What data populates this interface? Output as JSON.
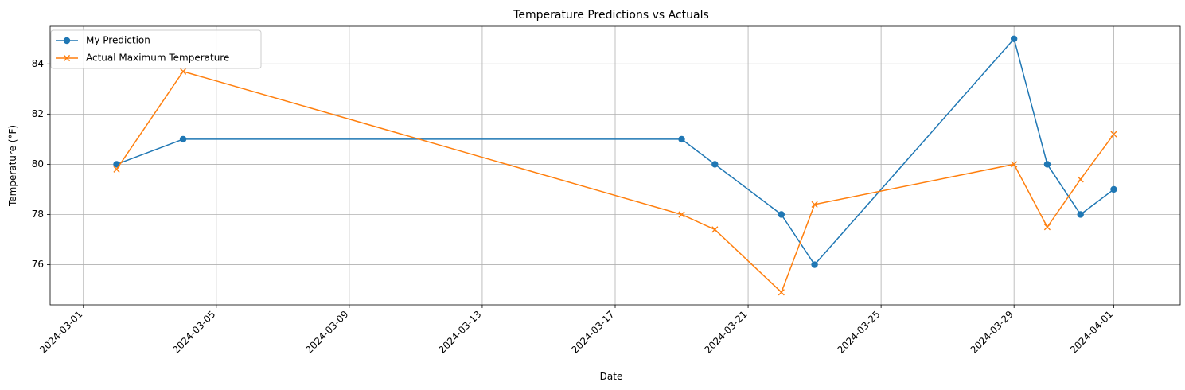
{
  "chart_data": {
    "type": "line",
    "title": "Temperature Predictions vs Actuals",
    "xlabel": "Date",
    "ylabel": "Temperature (°F)",
    "xlim": [
      "2024-02-29",
      "2024-04-03"
    ],
    "ylim": [
      74.4,
      85.5
    ],
    "x_ticks": [
      "2024-03-01",
      "2024-03-05",
      "2024-03-09",
      "2024-03-13",
      "2024-03-17",
      "2024-03-21",
      "2024-03-25",
      "2024-03-29",
      "2024-04-01"
    ],
    "y_ticks": [
      76,
      78,
      80,
      82,
      84
    ],
    "grid": true,
    "legend_position": "top-left",
    "series": [
      {
        "name": "My Prediction",
        "color": "#1f77b4",
        "marker": "circle",
        "x": [
          "2024-03-02",
          "2024-03-04",
          "2024-03-19",
          "2024-03-20",
          "2024-03-22",
          "2024-03-23",
          "2024-03-29",
          "2024-03-30",
          "2024-03-31",
          "2024-04-01"
        ],
        "y": [
          80,
          81,
          81,
          80,
          78,
          76,
          85,
          80,
          78,
          79
        ]
      },
      {
        "name": "Actual Maximum Temperature",
        "color": "#ff7f0e",
        "marker": "x",
        "x": [
          "2024-03-02",
          "2024-03-04",
          "2024-03-19",
          "2024-03-20",
          "2024-03-22",
          "2024-03-23",
          "2024-03-29",
          "2024-03-30",
          "2024-03-31",
          "2024-04-01"
        ],
        "y": [
          79.8,
          83.7,
          78.0,
          77.4,
          74.9,
          78.4,
          80.0,
          77.5,
          79.4,
          81.2
        ]
      }
    ]
  }
}
